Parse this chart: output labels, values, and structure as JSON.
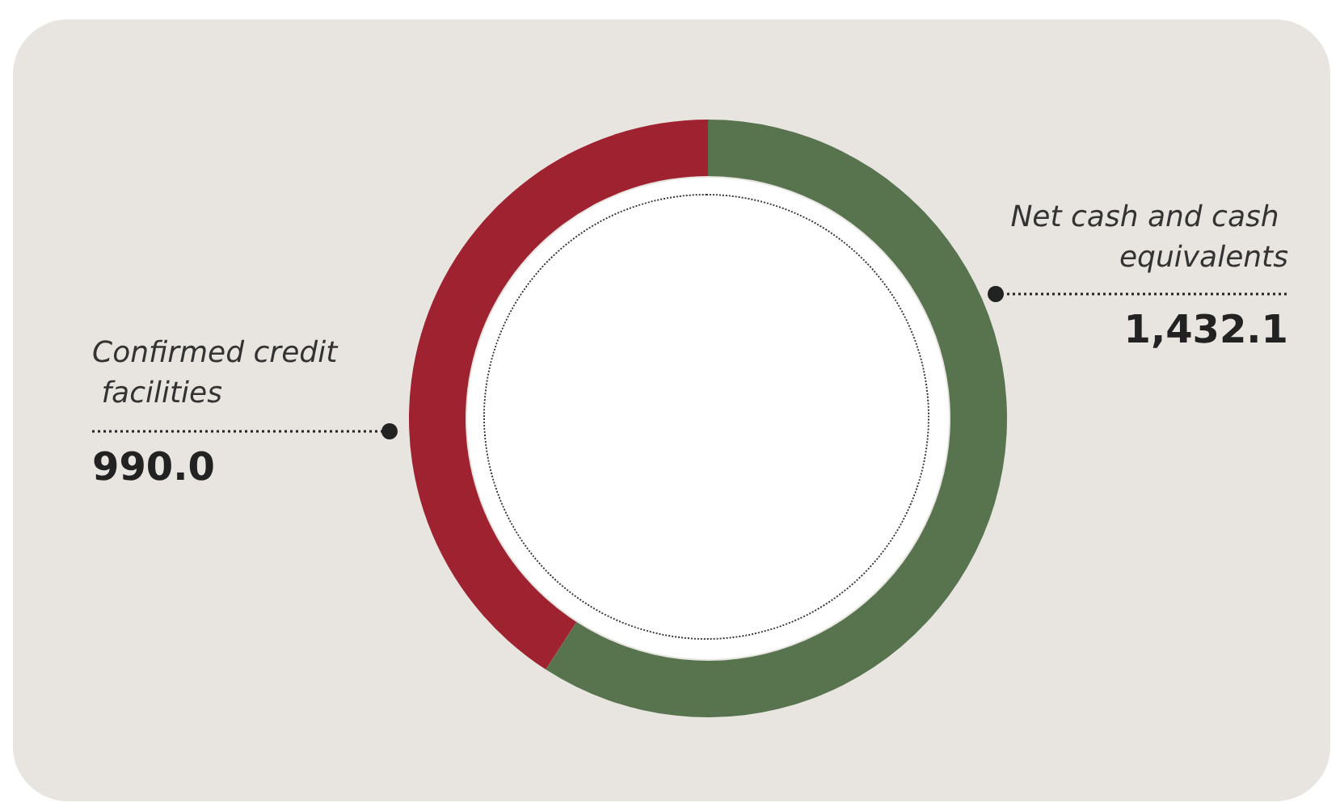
{
  "chart_data": {
    "type": "donut",
    "categories": [
      "Net cash and cash equivalents",
      "Confirmed credit facilities"
    ],
    "values": [
      1432.1,
      990.0
    ],
    "colors": [
      "#58744f",
      "#9e2230"
    ],
    "value_labels": [
      "1,432.1",
      "990.0"
    ],
    "legend": false
  }
}
